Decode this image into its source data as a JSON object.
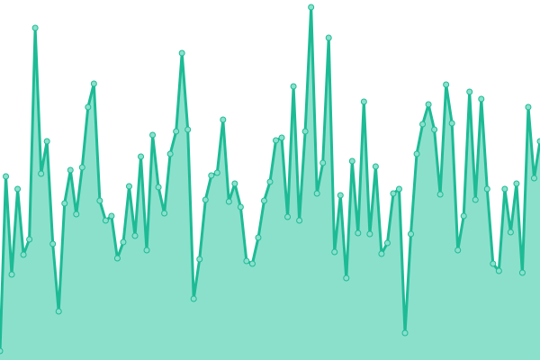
{
  "chart_data": {
    "type": "area",
    "values": [
      10,
      204,
      95,
      190,
      117,
      134,
      369,
      207,
      243,
      129,
      54,
      174,
      211,
      162,
      214,
      281,
      307,
      177,
      155,
      160,
      113,
      131,
      193,
      138,
      226,
      122,
      250,
      192,
      163,
      229,
      254,
      341,
      256,
      68,
      112,
      178,
      205,
      208,
      267,
      176,
      196,
      170,
      110,
      107,
      136,
      177,
      198,
      244,
      247,
      159,
      304,
      155,
      254,
      392,
      185,
      219,
      358,
      120,
      183,
      91,
      221,
      141,
      287,
      140,
      215,
      118,
      130,
      185,
      190,
      30,
      140,
      229,
      262,
      284,
      256,
      184,
      306,
      263,
      122,
      160,
      298,
      178,
      290,
      190,
      107,
      99,
      190,
      142,
      196,
      97,
      281,
      202,
      243
    ],
    "ylim": [
      0,
      400
    ],
    "color": "#1dbb95",
    "fill": "#8be0cc"
  }
}
